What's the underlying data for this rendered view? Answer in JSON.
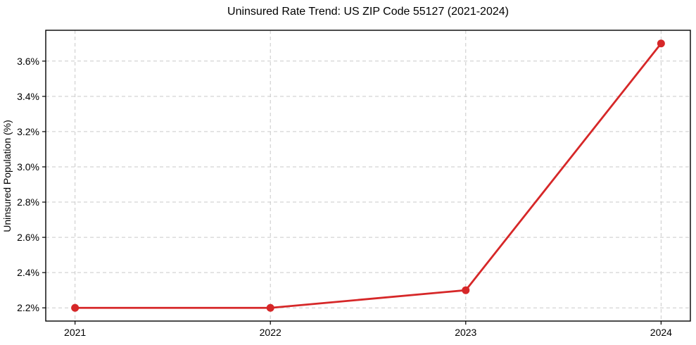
{
  "chart_data": {
    "type": "line",
    "title": "Uninsured Rate Trend: US ZIP Code 55127 (2021-2024)",
    "xlabel": "",
    "ylabel": "Uninsured Population (%)",
    "x": [
      2021,
      2022,
      2023,
      2024
    ],
    "values": [
      2.2,
      2.2,
      2.3,
      3.7
    ],
    "x_tick_labels": [
      "2021",
      "2022",
      "2023",
      "2024"
    ],
    "y_ticks": [
      2.2,
      2.4,
      2.6,
      2.8,
      3.0,
      3.2,
      3.4,
      3.6
    ],
    "y_tick_labels": [
      "2.2%",
      "2.4%",
      "2.6%",
      "2.8%",
      "3.0%",
      "3.2%",
      "3.4%",
      "3.6%"
    ],
    "xlim": [
      2020.85,
      2024.15
    ],
    "ylim": [
      2.125,
      3.775
    ],
    "grid": true,
    "grid_style": "dashed",
    "legend": "none",
    "line_color": "#d62728",
    "marker": "circle",
    "grid_color": "#c9c9c9",
    "spine_color": "#000000",
    "background_color": "#ffffff"
  }
}
